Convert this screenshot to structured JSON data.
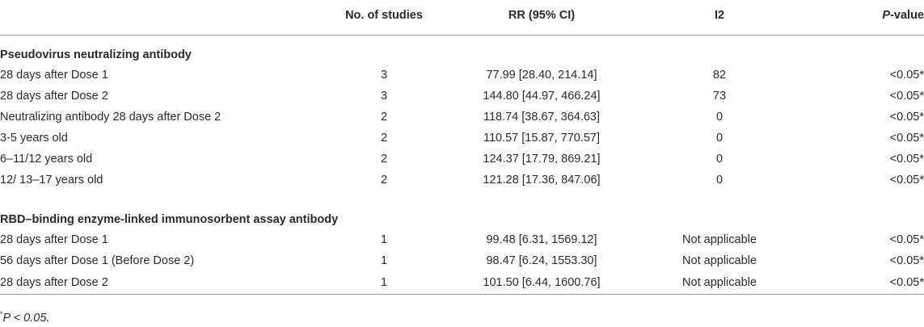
{
  "header": {
    "col1": "",
    "col2": "No. of studies",
    "col3": "RR (95% CI)",
    "col4": "I2",
    "col5_italic": "P",
    "col5_rest": "-value"
  },
  "groups": [
    {
      "title": "Pseudovirus neutralizing antibody",
      "rows": [
        {
          "label": "28 days after Dose 1",
          "studies": "3",
          "rr": "77.99 [28.40, 214.14]",
          "i2": "82",
          "p": "<0.05*"
        },
        {
          "label": "28 days after Dose 2",
          "studies": "3",
          "rr": "144.80 [44.97, 466.24]",
          "i2": "73",
          "p": "<0.05*"
        },
        {
          "label": "Neutralizing antibody 28 days after Dose 2",
          "studies": "2",
          "rr": "118.74 [38.67, 364.63]",
          "i2": "0",
          "p": "<0.05*"
        },
        {
          "label": "3-5 years old",
          "studies": "2",
          "rr": "110.57 [15.87, 770.57]",
          "i2": "0",
          "p": "<0.05*"
        },
        {
          "label": "6–11/12 years old",
          "studies": "2",
          "rr": "124.37 [17.79, 869.21]",
          "i2": "0",
          "p": "<0.05*"
        },
        {
          "label": "12/ 13–17 years old",
          "studies": "2",
          "rr": "121.28 [17.36, 847.06]",
          "i2": "0",
          "p": "<0.05*"
        }
      ]
    },
    {
      "title": "RBD–binding enzyme-linked immunosorbent assay antibody",
      "rows": [
        {
          "label": "28 days after Dose 1",
          "studies": "1",
          "rr": "99.48 [6.31, 1569.12]",
          "i2": "Not applicable",
          "p": "<0.05*"
        },
        {
          "label": "56 days after Dose 1 (Before Dose 2)",
          "studies": "1",
          "rr": "98.47 [6.24, 1553.30]",
          "i2": "Not applicable",
          "p": "<0.05*"
        },
        {
          "label": "28 days after Dose 2",
          "studies": "1",
          "rr": "101.50 [6.44, 1600.76]",
          "i2": "Not applicable",
          "p": "<0.05*"
        }
      ]
    }
  ],
  "footnote": {
    "mark": "*",
    "text": "P < 0.05."
  }
}
